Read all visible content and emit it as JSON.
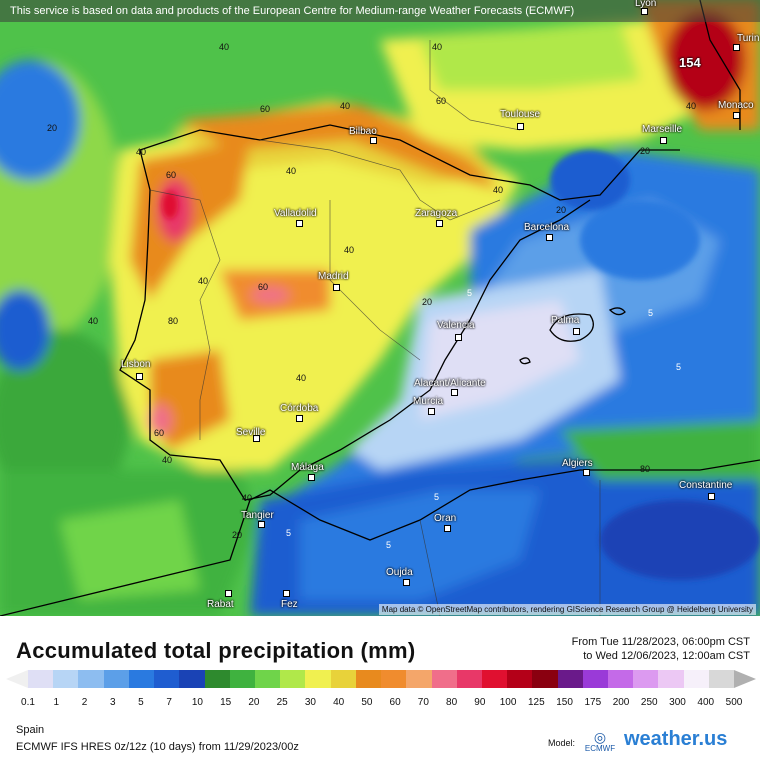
{
  "banner": "This service is based on data and products of the European Centre for Medium-range Weather Forecasts (ECMWF)",
  "map_credit": "Map data © OpenStreetMap contributors, rendering GIScience Research Group @ Heidelberg University",
  "max_value": "154",
  "cities": [
    {
      "id": "lyon",
      "name": "Lyon"
    },
    {
      "id": "turin",
      "name": "Turin"
    },
    {
      "id": "monaco",
      "name": "Monaco"
    },
    {
      "id": "toulouse",
      "name": "Toulouse"
    },
    {
      "id": "marseille",
      "name": "Marseille"
    },
    {
      "id": "bilbao",
      "name": "Bilbao"
    },
    {
      "id": "valladolid",
      "name": "Valladolid"
    },
    {
      "id": "zaragoza",
      "name": "Zaragoza"
    },
    {
      "id": "barcelona",
      "name": "Barcelona"
    },
    {
      "id": "madrid",
      "name": "Madrid"
    },
    {
      "id": "valencia",
      "name": "Valencia"
    },
    {
      "id": "palma",
      "name": "Palma"
    },
    {
      "id": "lisbon",
      "name": "Lisbon"
    },
    {
      "id": "alicante",
      "name": "Alacant/Alicante"
    },
    {
      "id": "murcia",
      "name": "Murcia"
    },
    {
      "id": "cordoba",
      "name": "Córdoba"
    },
    {
      "id": "seville",
      "name": "Seville"
    },
    {
      "id": "malaga",
      "name": "Málaga"
    },
    {
      "id": "algiers",
      "name": "Algiers"
    },
    {
      "id": "constantine",
      "name": "Constantine"
    },
    {
      "id": "tangier",
      "name": "Tangier"
    },
    {
      "id": "oran",
      "name": "Oran"
    },
    {
      "id": "oujda",
      "name": "Oujda"
    },
    {
      "id": "rabat",
      "name": "Rabat"
    },
    {
      "id": "fez",
      "name": "Fez"
    }
  ],
  "contour_labels": {
    "c20": "20",
    "c40": "40",
    "c60": "60",
    "c80": "80",
    "c5": "5"
  },
  "title": "Accumulated total precipitation (mm)",
  "date_from": "From Tue 11/28/2023, 06:00pm CST",
  "date_to": "to Wed 12/06/2023, 12:00am CST",
  "legend": {
    "colors": [
      "#dfdff5",
      "#b7d5f5",
      "#8dbdf0",
      "#5c9fe8",
      "#2a7ae0",
      "#1f5dd0",
      "#1a43b5",
      "#2e8a2e",
      "#3fb23f",
      "#6fd44a",
      "#b0e84a",
      "#f0f050",
      "#e8d23a",
      "#e88a1e",
      "#f08c2e",
      "#f4a66a",
      "#f06e8a",
      "#e83868",
      "#e01030",
      "#b40018",
      "#8a0010",
      "#6a1a8a",
      "#9a3ad8",
      "#c46ae8",
      "#dc9af0",
      "#ecc8f4",
      "#f6f0fa",
      "#d8d8d8"
    ],
    "ticks": [
      "0.1",
      "1",
      "2",
      "3",
      "5",
      "7",
      "10",
      "15",
      "20",
      "25",
      "30",
      "40",
      "50",
      "60",
      "70",
      "80",
      "90",
      "100",
      "125",
      "150",
      "175",
      "200",
      "250",
      "300",
      "400",
      "500"
    ]
  },
  "region": "Spain",
  "model_run": "ECMWF IFS HRES 0z/12z (10 days) from  11/29/2023/00z",
  "model_label": "Model:",
  "ecmwf_logo_text": "ECMWF",
  "brand": {
    "name": "weather.",
    "suffix": "us"
  }
}
